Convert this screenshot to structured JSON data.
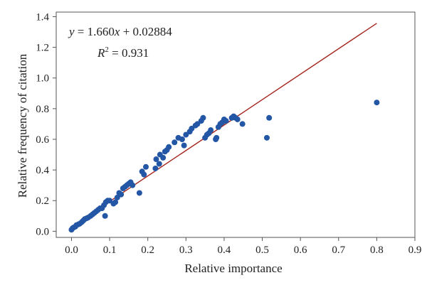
{
  "chart_data": {
    "type": "scatter",
    "title": "",
    "xlabel": "Relative importance",
    "ylabel": "Relative frequency of citation",
    "xlim": [
      -0.04,
      0.9
    ],
    "ylim": [
      -0.04,
      1.43
    ],
    "x_ticks": [
      0.0,
      0.1,
      0.2,
      0.3,
      0.4,
      0.5,
      0.6,
      0.7,
      0.8,
      0.9
    ],
    "y_ticks": [
      0.0,
      0.2,
      0.4,
      0.6,
      0.8,
      1.0,
      1.2,
      1.4
    ],
    "x_tick_labels": [
      "0.0",
      "0.1",
      "0.2",
      "0.3",
      "0.4",
      "0.5",
      "0.6",
      "0.7",
      "0.8",
      "0.9"
    ],
    "y_tick_labels": [
      "0.0",
      "0.2",
      "0.4",
      "0.6",
      "0.8",
      "1.0",
      "1.2",
      "1.4"
    ],
    "grid": false,
    "legend": "none",
    "colors": {
      "points": "#2356a5",
      "fit_line": "#a4241c",
      "frame": "#555555"
    },
    "annotations": {
      "equation": "y = 1.660x + 0.02884",
      "equation_y": "y",
      "equation_rest": " = 1.660",
      "equation_x": "x",
      "equation_tail": " + 0.02884",
      "r2_R": "R",
      "r2_sup": "2",
      "r2_rest": " = 0.931"
    },
    "fit": {
      "slope": 1.66,
      "intercept": 0.02884,
      "x_range": [
        0.0,
        0.8
      ]
    },
    "series": [
      {
        "points": [
          [
            0.0,
            0.01
          ],
          [
            0.003,
            0.02
          ],
          [
            0.006,
            0.025
          ],
          [
            0.01,
            0.03
          ],
          [
            0.013,
            0.04
          ],
          [
            0.018,
            0.045
          ],
          [
            0.022,
            0.05
          ],
          [
            0.027,
            0.06
          ],
          [
            0.031,
            0.07
          ],
          [
            0.035,
            0.08
          ],
          [
            0.04,
            0.085
          ],
          [
            0.044,
            0.09
          ],
          [
            0.05,
            0.1
          ],
          [
            0.055,
            0.11
          ],
          [
            0.06,
            0.12
          ],
          [
            0.065,
            0.13
          ],
          [
            0.07,
            0.14
          ],
          [
            0.075,
            0.15
          ],
          [
            0.08,
            0.15
          ],
          [
            0.085,
            0.17
          ],
          [
            0.09,
            0.19
          ],
          [
            0.095,
            0.2
          ],
          [
            0.1,
            0.2
          ],
          [
            0.088,
            0.1
          ],
          [
            0.11,
            0.18
          ],
          [
            0.115,
            0.19
          ],
          [
            0.12,
            0.22
          ],
          [
            0.125,
            0.25
          ],
          [
            0.13,
            0.24
          ],
          [
            0.135,
            0.28
          ],
          [
            0.14,
            0.29
          ],
          [
            0.145,
            0.3
          ],
          [
            0.15,
            0.31
          ],
          [
            0.155,
            0.32
          ],
          [
            0.16,
            0.3
          ],
          [
            0.178,
            0.25
          ],
          [
            0.185,
            0.39
          ],
          [
            0.19,
            0.37
          ],
          [
            0.195,
            0.42
          ],
          [
            0.22,
            0.41
          ],
          [
            0.222,
            0.47
          ],
          [
            0.23,
            0.44
          ],
          [
            0.232,
            0.5
          ],
          [
            0.24,
            0.48
          ],
          [
            0.245,
            0.52
          ],
          [
            0.25,
            0.53
          ],
          [
            0.255,
            0.55
          ],
          [
            0.27,
            0.58
          ],
          [
            0.28,
            0.61
          ],
          [
            0.29,
            0.6
          ],
          [
            0.295,
            0.56
          ],
          [
            0.3,
            0.63
          ],
          [
            0.31,
            0.65
          ],
          [
            0.315,
            0.67
          ],
          [
            0.325,
            0.69
          ],
          [
            0.33,
            0.7
          ],
          [
            0.34,
            0.72
          ],
          [
            0.345,
            0.74
          ],
          [
            0.35,
            0.61
          ],
          [
            0.355,
            0.63
          ],
          [
            0.36,
            0.64
          ],
          [
            0.365,
            0.66
          ],
          [
            0.378,
            0.6
          ],
          [
            0.38,
            0.61
          ],
          [
            0.385,
            0.68
          ],
          [
            0.39,
            0.7
          ],
          [
            0.395,
            0.71
          ],
          [
            0.4,
            0.73
          ],
          [
            0.405,
            0.72
          ],
          [
            0.42,
            0.74
          ],
          [
            0.425,
            0.75
          ],
          [
            0.43,
            0.74
          ],
          [
            0.435,
            0.73
          ],
          [
            0.448,
            0.7
          ],
          [
            0.512,
            0.61
          ],
          [
            0.518,
            0.74
          ],
          [
            0.8,
            0.84
          ]
        ]
      }
    ]
  }
}
